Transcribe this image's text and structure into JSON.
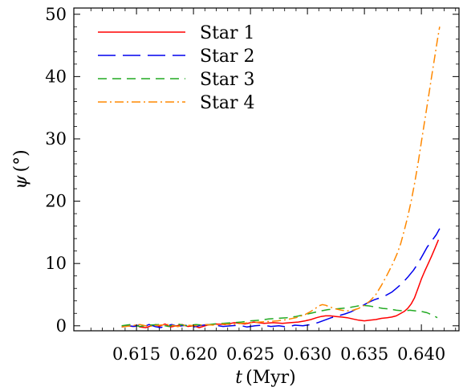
{
  "chart_data": {
    "type": "line",
    "xlabel_var": "t",
    "xlabel_unit": "(Myr)",
    "ylabel_var": "ψ",
    "ylabel_unit": "(°)",
    "xlim": [
      0.6095,
      0.6433
    ],
    "ylim": [
      -0.8,
      51
    ],
    "xticks": [
      0.615,
      0.62,
      0.625,
      0.63,
      0.635,
      0.64
    ],
    "xtick_labels": [
      "0.615",
      "0.620",
      "0.625",
      "0.630",
      "0.635",
      "0.640"
    ],
    "yticks": [
      0,
      10,
      20,
      30,
      40,
      50
    ],
    "ytick_labels": [
      "0",
      "10",
      "20",
      "30",
      "40",
      "50"
    ],
    "legend_position": "top-left",
    "grid": false,
    "series": [
      {
        "name": "Star 1",
        "color": "#ff0000",
        "dash": "solid",
        "x": [
          0.6137,
          0.6142,
          0.6147,
          0.615,
          0.6153,
          0.6158,
          0.6163,
          0.6167,
          0.617,
          0.6175,
          0.618,
          0.6185,
          0.619,
          0.6195,
          0.62,
          0.6205,
          0.6212,
          0.622,
          0.6228,
          0.6236,
          0.6245,
          0.6253,
          0.6262,
          0.627,
          0.6278,
          0.6285,
          0.6292,
          0.6298,
          0.6303,
          0.6308,
          0.6312,
          0.6316,
          0.632,
          0.6325,
          0.633,
          0.6335,
          0.634,
          0.6345,
          0.635,
          0.6355,
          0.636,
          0.6365,
          0.637,
          0.6374,
          0.6378,
          0.6381,
          0.6385,
          0.6388,
          0.6391,
          0.6394,
          0.6397,
          0.64,
          0.6403,
          0.6406,
          0.6409,
          0.6412,
          0.6415
        ],
        "y": [
          -0.2,
          0.0,
          -0.1,
          0.1,
          -0.2,
          -0.3,
          0.0,
          0.2,
          -0.1,
          0.3,
          -0.2,
          0.0,
          0.2,
          -0.1,
          0.0,
          -0.3,
          0.1,
          0.3,
          0.2,
          0.5,
          0.3,
          0.6,
          0.4,
          0.5,
          0.4,
          0.5,
          0.6,
          0.8,
          1.0,
          1.3,
          1.5,
          1.6,
          1.6,
          1.5,
          1.4,
          1.3,
          1.1,
          0.9,
          0.8,
          0.9,
          1.0,
          1.2,
          1.3,
          1.4,
          1.6,
          1.9,
          2.3,
          2.8,
          3.5,
          4.5,
          6.0,
          7.5,
          8.8,
          10.0,
          11.2,
          12.5,
          13.8
        ]
      },
      {
        "name": "Star 2",
        "color": "#0000ee",
        "dash": "longdash",
        "x": [
          0.6137,
          0.6143,
          0.6148,
          0.6152,
          0.6156,
          0.6161,
          0.6166,
          0.6171,
          0.6176,
          0.6181,
          0.6186,
          0.619,
          0.6195,
          0.62,
          0.6205,
          0.6212,
          0.6219,
          0.6226,
          0.6233,
          0.624,
          0.6247,
          0.6254,
          0.6261,
          0.6268,
          0.6275,
          0.6282,
          0.6289,
          0.6296,
          0.6303,
          0.6309,
          0.6315,
          0.6321,
          0.6327,
          0.6333,
          0.6339,
          0.6344,
          0.6349,
          0.6354,
          0.6359,
          0.6364,
          0.6369,
          0.6374,
          0.6378,
          0.6383,
          0.6388,
          0.6393,
          0.6397,
          0.6401,
          0.6405,
          0.6409,
          0.6413,
          0.6416
        ],
        "y": [
          -0.2,
          0.0,
          -0.1,
          0.1,
          -0.2,
          0.2,
          -0.1,
          -0.3,
          0.0,
          0.2,
          -0.1,
          0.0,
          0.1,
          -0.2,
          0.0,
          0.2,
          0.1,
          -0.1,
          0.0,
          0.1,
          -0.2,
          0.0,
          0.1,
          -0.1,
          0.0,
          -0.2,
          0.1,
          0.0,
          0.2,
          0.5,
          0.9,
          1.3,
          1.6,
          1.9,
          2.3,
          2.8,
          3.3,
          3.8,
          4.2,
          4.5,
          4.9,
          5.4,
          6.0,
          6.8,
          7.8,
          8.9,
          10.0,
          11.3,
          12.6,
          13.6,
          14.6,
          15.6
        ]
      },
      {
        "name": "Star 3",
        "color": "#22aa22",
        "dash": "dashed",
        "x": [
          0.6137,
          0.6145,
          0.6153,
          0.6161,
          0.617,
          0.6178,
          0.6186,
          0.6194,
          0.6202,
          0.621,
          0.6218,
          0.6226,
          0.6234,
          0.6242,
          0.625,
          0.6258,
          0.6266,
          0.6274,
          0.6282,
          0.629,
          0.6298,
          0.6305,
          0.6312,
          0.6318,
          0.6324,
          0.633,
          0.6336,
          0.6342,
          0.6348,
          0.6354,
          0.636,
          0.6366,
          0.6372,
          0.6378,
          0.6384,
          0.639,
          0.6395,
          0.64,
          0.6405,
          0.641,
          0.6414
        ],
        "y": [
          0.0,
          0.2,
          -0.1,
          0.1,
          0.2,
          -0.1,
          0.3,
          0.0,
          0.2,
          0.1,
          0.3,
          0.4,
          0.5,
          0.6,
          0.8,
          0.9,
          1.1,
          1.2,
          1.3,
          1.5,
          1.8,
          2.1,
          2.4,
          2.6,
          2.7,
          2.8,
          2.9,
          3.1,
          3.3,
          3.2,
          3.0,
          2.8,
          2.7,
          2.5,
          2.4,
          2.5,
          2.4,
          2.3,
          2.1,
          1.7,
          1.3
        ]
      },
      {
        "name": "Star 4",
        "color": "#ff8800",
        "dash": "dashdot",
        "x": [
          0.6137,
          0.6145,
          0.6153,
          0.6161,
          0.617,
          0.6178,
          0.6186,
          0.6194,
          0.6202,
          0.621,
          0.6218,
          0.6226,
          0.6234,
          0.6242,
          0.625,
          0.6258,
          0.6266,
          0.6274,
          0.6282,
          0.629,
          0.6298,
          0.6303,
          0.6307,
          0.631,
          0.6313,
          0.6316,
          0.632,
          0.6325,
          0.633,
          0.6335,
          0.634,
          0.6345,
          0.635,
          0.6355,
          0.636,
          0.6365,
          0.637,
          0.6375,
          0.6379,
          0.6382,
          0.6385,
          0.6388,
          0.6391,
          0.6394,
          0.6397,
          0.64,
          0.6403,
          0.6406,
          0.6409,
          0.6412,
          0.6414,
          0.6416
        ],
        "y": [
          -0.2,
          0.0,
          0.2,
          -0.1,
          0.1,
          0.2,
          -0.1,
          0.1,
          0.0,
          0.2,
          0.1,
          0.3,
          0.2,
          0.4,
          0.5,
          0.6,
          0.7,
          0.8,
          1.0,
          1.3,
          1.8,
          2.3,
          2.8,
          3.2,
          3.4,
          3.3,
          3.0,
          2.7,
          2.5,
          2.4,
          2.5,
          2.8,
          3.3,
          4.0,
          5.0,
          6.5,
          8.2,
          10.0,
          11.7,
          13.3,
          15.3,
          17.5,
          20.0,
          22.8,
          26.0,
          29.5,
          33.0,
          36.5,
          40.0,
          43.5,
          45.8,
          48.0
        ]
      }
    ]
  }
}
